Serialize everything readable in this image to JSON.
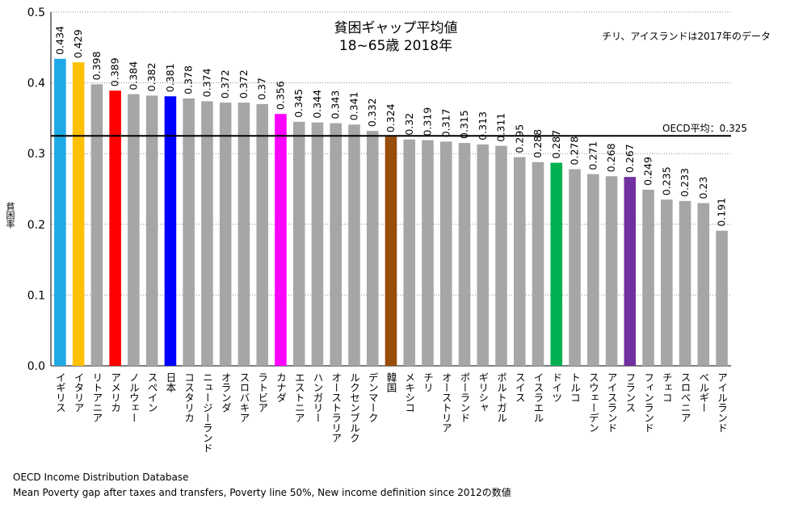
{
  "chart_data": {
    "type": "bar",
    "title_line1": "貧困ギャップ平均値",
    "title_line2": "18~65歳 2018年",
    "note": "チリ、アイスランドは2017年のデータ",
    "ylabel": "貧困率",
    "ylim": [
      0,
      0.5
    ],
    "yticks": [
      "0.0",
      "0.1",
      "0.2",
      "0.3",
      "0.4",
      "0.5"
    ],
    "ytick_values": [
      0,
      0.1,
      0.2,
      0.3,
      0.4,
      0.5
    ],
    "grid": true,
    "reference_line": {
      "label": "OECD平均：0.325",
      "value": 0.325
    },
    "categories": [
      "イギリス",
      "イタリア",
      "リトアニア",
      "アメリカ",
      "ノルウェー",
      "スペイン",
      "日本",
      "コスタリカ",
      "ニュージーランド",
      "オランダ",
      "スロバキア",
      "ラトビア",
      "カナダ",
      "エストニア",
      "ハンガリー",
      "オーストラリア",
      "ルクセンブルク",
      "デンマーク",
      "韓国",
      "メキシコ",
      "チリ",
      "オーストリア",
      "ポーランド",
      "ギリシャ",
      "ポルトガル",
      "スイス",
      "イスラエル",
      "ドイツ",
      "トルコ",
      "スウェーデン",
      "アイスランド",
      "フランス",
      "フィンランド",
      "チェコ",
      "スロベニア",
      "ベルギー",
      "アイルランド"
    ],
    "values": [
      0.434,
      0.429,
      0.398,
      0.389,
      0.384,
      0.382,
      0.381,
      0.378,
      0.374,
      0.372,
      0.372,
      0.37,
      0.356,
      0.345,
      0.344,
      0.343,
      0.341,
      0.332,
      0.324,
      0.32,
      0.319,
      0.317,
      0.315,
      0.313,
      0.311,
      0.295,
      0.288,
      0.287,
      0.278,
      0.271,
      0.268,
      0.267,
      0.249,
      0.235,
      0.233,
      0.23,
      0.191
    ],
    "value_labels": [
      "0.434",
      "0.429",
      "0.398",
      "0.389",
      "0.384",
      "0.382",
      "0.381",
      "0.378",
      "0.374",
      "0.372",
      "0.372",
      "0.37",
      "0.356",
      "0.345",
      "0.344",
      "0.343",
      "0.341",
      "0.332",
      "0.324",
      "0.32",
      "0.319",
      "0.317",
      "0.315",
      "0.313",
      "0.311",
      "0.295",
      "0.288",
      "0.287",
      "0.278",
      "0.271",
      "0.268",
      "0.267",
      "0.249",
      "0.235",
      "0.233",
      "0.23",
      "0.191"
    ],
    "colors": [
      "#1fa9e6",
      "#ffc000",
      "#a6a6a6",
      "#ff0000",
      "#a6a6a6",
      "#a6a6a6",
      "#0000ff",
      "#a6a6a6",
      "#a6a6a6",
      "#a6a6a6",
      "#a6a6a6",
      "#a6a6a6",
      "#ff00ff",
      "#a6a6a6",
      "#a6a6a6",
      "#a6a6a6",
      "#a6a6a6",
      "#a6a6a6",
      "#994d0a",
      "#a6a6a6",
      "#a6a6a6",
      "#a6a6a6",
      "#a6a6a6",
      "#a6a6a6",
      "#a6a6a6",
      "#a6a6a6",
      "#a6a6a6",
      "#00b050",
      "#a6a6a6",
      "#a6a6a6",
      "#a6a6a6",
      "#7030a0",
      "#a6a6a6",
      "#a6a6a6",
      "#a6a6a6",
      "#a6a6a6",
      "#a6a6a6"
    ]
  },
  "source": {
    "line1": "OECD Income Distribution Database",
    "line2": "Mean Poverty gap after taxes and transfers, Poverty line 50%, New income definition since 2012の数値"
  }
}
